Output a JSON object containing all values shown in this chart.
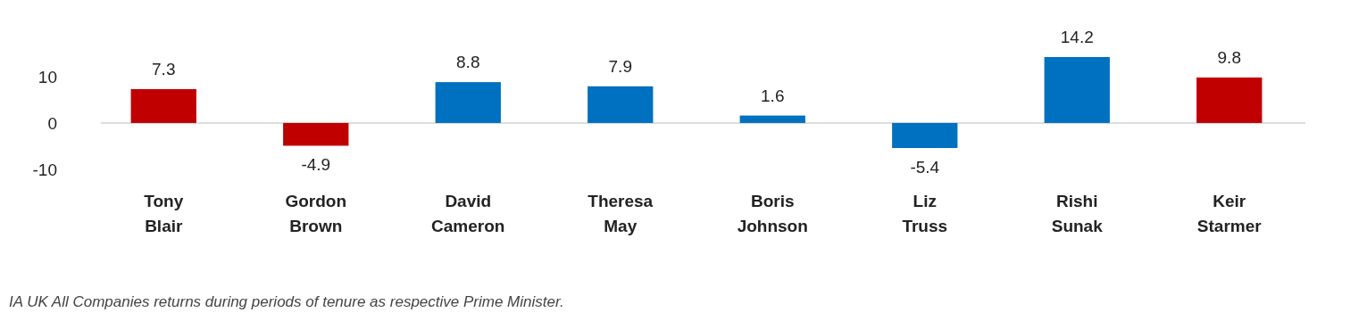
{
  "chart_data": {
    "type": "bar",
    "categories": [
      "Tony Blair",
      "Gordon Brown",
      "David Cameron",
      "Theresa May",
      "Boris Johnson",
      "Liz Truss",
      "Rishi Sunak",
      "Keir Starmer"
    ],
    "values": [
      7.3,
      -4.9,
      8.8,
      7.9,
      1.6,
      -5.4,
      14.2,
      9.8
    ],
    "colors": [
      "#c00000",
      "#c00000",
      "#0070c0",
      "#0070c0",
      "#0070c0",
      "#0070c0",
      "#0070c0",
      "#c00000"
    ],
    "ylim": [
      -10,
      14.2
    ],
    "yticks": [
      -10,
      0,
      10
    ],
    "data_labels": true,
    "annotations": [
      "IA UK All Companies returns during periods of tenure as respective Prime Minister."
    ]
  }
}
